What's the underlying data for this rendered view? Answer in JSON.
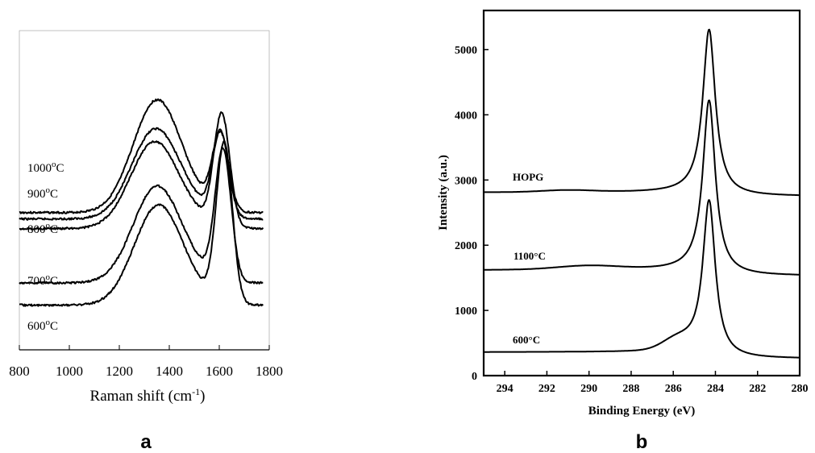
{
  "panels": {
    "a": "a",
    "b": "b"
  },
  "chart_data": [
    {
      "type": "line",
      "panel": "a",
      "xlabel": "Raman shift (cm",
      "xlabel_sup": "-1",
      "xlabel_close": ")",
      "ylabel": "",
      "xlim": [
        800,
        1800
      ],
      "xticks": [
        "800",
        "1000",
        "1200",
        "1400",
        "1600",
        "1800"
      ],
      "y_axis_shown": false,
      "series": [
        {
          "name": "1000",
          "name_sup": "o",
          "name_unit": "C",
          "baseline": 0.57,
          "d_height": 0.35,
          "g_height": 0.24,
          "g_pos": 1605,
          "d_pos": 1350
        },
        {
          "name": "900",
          "name_sup": "o",
          "name_unit": "C",
          "baseline": 0.59,
          "d_height": 0.28,
          "g_height": 0.26,
          "g_pos": 1605,
          "d_pos": 1345
        },
        {
          "name": "800",
          "name_sup": "o",
          "name_unit": "C",
          "baseline": 0.62,
          "d_height": 0.27,
          "g_height": 0.35,
          "g_pos": 1610,
          "d_pos": 1340
        },
        {
          "name": "700",
          "name_sup": "o",
          "name_unit": "C",
          "baseline": 0.79,
          "d_height": 0.3,
          "g_height": 0.41,
          "g_pos": 1615,
          "d_pos": 1350
        },
        {
          "name": "600",
          "name_sup": "o",
          "name_unit": "C",
          "baseline": 0.86,
          "d_height": 0.31,
          "g_height": 0.5,
          "g_pos": 1620,
          "d_pos": 1355
        }
      ]
    },
    {
      "type": "line",
      "panel": "b",
      "xlabel": "Binding Energy (eV)",
      "ylabel": "Intensity (a.u.)",
      "xlim": [
        295,
        280
      ],
      "ylim": [
        0,
        5600
      ],
      "xticks": [
        294,
        292,
        290,
        288,
        286,
        284,
        282,
        280
      ],
      "yticks": [
        0,
        1000,
        2000,
        3000,
        4000,
        5000
      ],
      "series": [
        {
          "name": "HOPG",
          "left_level": 2810,
          "right_level": 2750,
          "peak_x": 284.3,
          "peak_y": 5280
        },
        {
          "name": "1100°C",
          "left_level": 1620,
          "right_level": 1530,
          "peak_x": 284.3,
          "peak_y": 4180
        },
        {
          "name": "600°C",
          "left_level": 360,
          "right_level": 260,
          "peak_x": 284.3,
          "peak_y": 2630
        }
      ]
    }
  ]
}
